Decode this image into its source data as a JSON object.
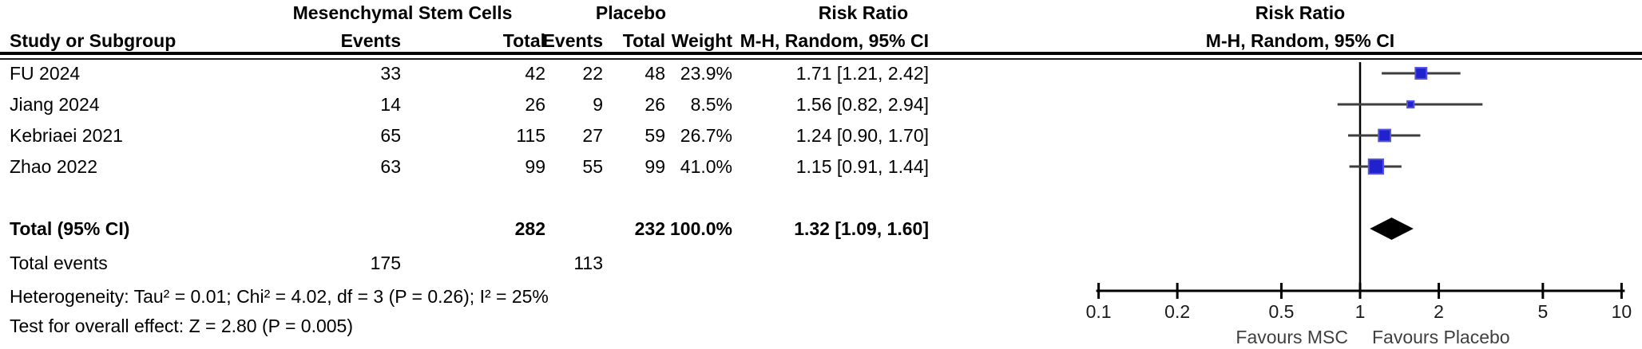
{
  "table": {
    "group_headers": {
      "msc": "Mesenchymal Stem Cells",
      "placebo": "Placebo",
      "risk_ratio": "Risk Ratio"
    },
    "columns": {
      "study": "Study or Subgroup",
      "events": "Events",
      "total": "Total",
      "events2": "Events",
      "total2": "Total",
      "weight": "Weight",
      "mh": "M-H, Random, 95% CI"
    },
    "rows": [
      {
        "study": "FU 2024",
        "msc_events": "33",
        "msc_total": "42",
        "pl_events": "22",
        "pl_total": "48",
        "weight": "23.9%",
        "rr": "1.71 [1.21, 2.42]"
      },
      {
        "study": "Jiang 2024",
        "msc_events": "14",
        "msc_total": "26",
        "pl_events": "9",
        "pl_total": "26",
        "weight": "8.5%",
        "rr": "1.56 [0.82, 2.94]"
      },
      {
        "study": "Kebriaei 2021",
        "msc_events": "65",
        "msc_total": "115",
        "pl_events": "27",
        "pl_total": "59",
        "weight": "26.7%",
        "rr": "1.24 [0.90, 1.70]"
      },
      {
        "study": "Zhao 2022",
        "msc_events": "63",
        "msc_total": "99",
        "pl_events": "55",
        "pl_total": "99",
        "weight": "41.0%",
        "rr": "1.15 [0.91, 1.44]"
      }
    ],
    "total_row": {
      "label": "Total (95% CI)",
      "msc_total": "282",
      "pl_total": "232",
      "weight": "100.0%",
      "rr": "1.32 [1.09, 1.60]"
    },
    "total_events": {
      "label": "Total events",
      "msc": "175",
      "pl": "113"
    },
    "heterogeneity": "Heterogeneity: Tau² = 0.01; Chi² = 4.02, df = 3 (P = 0.26); I² = 25%",
    "overall_effect": "Test for overall effect: Z = 2.80 (P = 0.005)"
  },
  "chart_data": {
    "type": "forest",
    "title": "Risk Ratio",
    "subtitle": "M-H, Random, 95% CI",
    "x_scale": "log10",
    "x_range": [
      0.1,
      10
    ],
    "axis_ticks": [
      0.1,
      0.2,
      0.5,
      1,
      2,
      5,
      10
    ],
    "tick_labels": [
      "0.1",
      "0.2",
      "0.5",
      "1",
      "2",
      "5",
      "10"
    ],
    "null_line": 1,
    "studies": [
      {
        "name": "FU 2024",
        "rr": 1.71,
        "ci_low": 1.21,
        "ci_high": 2.42,
        "weight_pct": 23.9
      },
      {
        "name": "Jiang 2024",
        "rr": 1.56,
        "ci_low": 0.82,
        "ci_high": 2.94,
        "weight_pct": 8.5
      },
      {
        "name": "Kebriaei 2021",
        "rr": 1.24,
        "ci_low": 0.9,
        "ci_high": 1.7,
        "weight_pct": 26.7
      },
      {
        "name": "Zhao 2022",
        "rr": 1.15,
        "ci_low": 0.91,
        "ci_high": 1.44,
        "weight_pct": 41.0
      }
    ],
    "total": {
      "rr": 1.32,
      "ci_low": 1.09,
      "ci_high": 1.6
    },
    "favours_left": "Favours MSC",
    "favours_right": "Favours Placebo",
    "marker_color": "#2121CE",
    "marker_border": "#5353DD",
    "ci_line_color": "#3d3d3d",
    "diamond_color": "#000000",
    "axis_color": "#000000"
  }
}
